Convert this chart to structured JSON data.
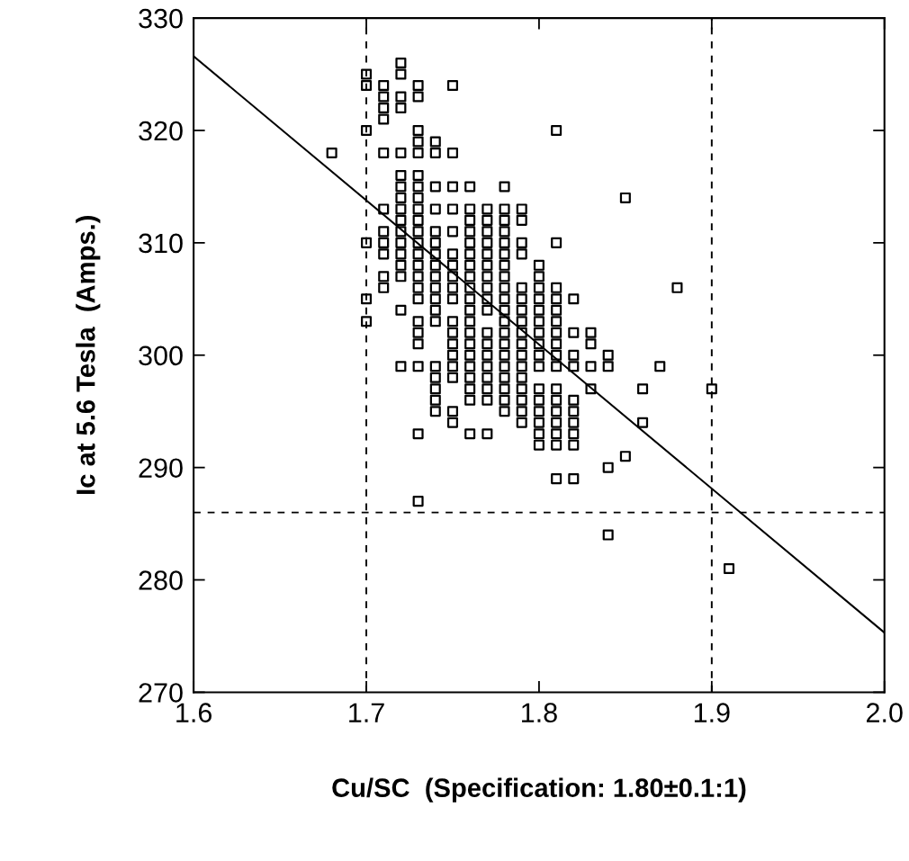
{
  "chart_data": {
    "type": "scatter",
    "xlabel": "Cu/SC  (Specification: 1.80±0.1:1)",
    "ylabel": "Ic at 5.6 Tesla  (Amps.)",
    "xlim": [
      1.6,
      2.0
    ],
    "xticks": [
      {
        "value": 1.6,
        "label": "1.6"
      },
      {
        "value": 1.7,
        "label": "1.7"
      },
      {
        "value": 1.8,
        "label": "1.8"
      },
      {
        "value": 1.9,
        "label": "1.9"
      },
      {
        "value": 2.0,
        "label": "2.0"
      }
    ],
    "ylim": [
      270,
      330
    ],
    "yticks": [
      270,
      280,
      290,
      300,
      310,
      320,
      330
    ],
    "grid": false,
    "legend": false,
    "marker": "square",
    "ref_lines": [
      {
        "axis": "x",
        "value": 1.7,
        "color": "#000000",
        "line_style": "dashed"
      },
      {
        "axis": "x",
        "value": 1.9,
        "color": "#000000",
        "line_style": "dashed"
      },
      {
        "axis": "y",
        "value": 286,
        "color": "#000000",
        "line_style": "dashed"
      }
    ],
    "series": [
      {
        "color": "#000000",
        "x": [
          1.68,
          1.7,
          1.7,
          1.7,
          1.7,
          1.7,
          1.7,
          1.71,
          1.71,
          1.71,
          1.71,
          1.71,
          1.71,
          1.71,
          1.71,
          1.71,
          1.71,
          1.71,
          1.72,
          1.72,
          1.72,
          1.72,
          1.72,
          1.72,
          1.72,
          1.72,
          1.72,
          1.72,
          1.72,
          1.72,
          1.72,
          1.72,
          1.72,
          1.72,
          1.72,
          1.73,
          1.73,
          1.73,
          1.73,
          1.73,
          1.73,
          1.73,
          1.73,
          1.73,
          1.73,
          1.73,
          1.73,
          1.73,
          1.73,
          1.73,
          1.73,
          1.73,
          1.73,
          1.73,
          1.73,
          1.73,
          1.73,
          1.73,
          1.74,
          1.74,
          1.74,
          1.74,
          1.74,
          1.74,
          1.74,
          1.74,
          1.74,
          1.74,
          1.74,
          1.74,
          1.74,
          1.74,
          1.74,
          1.74,
          1.74,
          1.74,
          1.75,
          1.75,
          1.75,
          1.75,
          1.75,
          1.75,
          1.75,
          1.75,
          1.75,
          1.75,
          1.75,
          1.75,
          1.75,
          1.75,
          1.75,
          1.75,
          1.75,
          1.75,
          1.76,
          1.76,
          1.76,
          1.76,
          1.76,
          1.76,
          1.76,
          1.76,
          1.76,
          1.76,
          1.76,
          1.76,
          1.76,
          1.76,
          1.76,
          1.76,
          1.76,
          1.76,
          1.76,
          1.76,
          1.77,
          1.77,
          1.77,
          1.77,
          1.77,
          1.77,
          1.77,
          1.77,
          1.77,
          1.77,
          1.77,
          1.77,
          1.77,
          1.77,
          1.77,
          1.77,
          1.77,
          1.77,
          1.78,
          1.78,
          1.78,
          1.78,
          1.78,
          1.78,
          1.78,
          1.78,
          1.78,
          1.78,
          1.78,
          1.78,
          1.78,
          1.78,
          1.78,
          1.78,
          1.78,
          1.78,
          1.78,
          1.78,
          1.79,
          1.79,
          1.79,
          1.79,
          1.79,
          1.79,
          1.79,
          1.79,
          1.79,
          1.79,
          1.79,
          1.79,
          1.79,
          1.79,
          1.79,
          1.79,
          1.79,
          1.8,
          1.8,
          1.8,
          1.8,
          1.8,
          1.8,
          1.8,
          1.8,
          1.8,
          1.8,
          1.8,
          1.8,
          1.8,
          1.8,
          1.8,
          1.8,
          1.81,
          1.81,
          1.81,
          1.81,
          1.81,
          1.81,
          1.81,
          1.81,
          1.81,
          1.81,
          1.81,
          1.81,
          1.81,
          1.81,
          1.81,
          1.81,
          1.81,
          1.82,
          1.82,
          1.82,
          1.82,
          1.82,
          1.82,
          1.82,
          1.82,
          1.82,
          1.82,
          1.83,
          1.83,
          1.83,
          1.83,
          1.84,
          1.84,
          1.84,
          1.84,
          1.85,
          1.85,
          1.86,
          1.86,
          1.87,
          1.88,
          1.9,
          1.91
        ],
        "values": [
          318,
          325,
          324,
          320,
          310,
          305,
          303,
          324,
          323,
          322,
          321,
          318,
          313,
          311,
          310,
          309,
          307,
          306,
          326,
          325,
          323,
          322,
          318,
          316,
          315,
          314,
          313,
          312,
          311,
          310,
          309,
          308,
          307,
          304,
          299,
          324,
          323,
          320,
          319,
          318,
          316,
          315,
          314,
          313,
          312,
          311,
          310,
          309,
          308,
          307,
          306,
          305,
          303,
          302,
          301,
          299,
          293,
          287,
          319,
          318,
          315,
          313,
          311,
          310,
          309,
          308,
          307,
          306,
          305,
          304,
          303,
          299,
          298,
          297,
          296,
          295,
          324,
          318,
          315,
          313,
          311,
          309,
          308,
          307,
          306,
          305,
          303,
          302,
          301,
          300,
          299,
          298,
          295,
          294,
          315,
          313,
          312,
          311,
          310,
          309,
          308,
          307,
          306,
          305,
          304,
          303,
          302,
          301,
          300,
          299,
          298,
          297,
          296,
          293,
          313,
          312,
          311,
          310,
          309,
          308,
          307,
          306,
          305,
          304,
          302,
          301,
          300,
          299,
          298,
          297,
          296,
          293,
          315,
          313,
          312,
          311,
          310,
          309,
          308,
          307,
          306,
          305,
          304,
          303,
          302,
          301,
          300,
          299,
          298,
          297,
          296,
          295,
          313,
          312,
          310,
          309,
          306,
          305,
          304,
          303,
          302,
          301,
          300,
          299,
          298,
          297,
          296,
          295,
          294,
          308,
          307,
          306,
          305,
          304,
          303,
          302,
          301,
          300,
          299,
          297,
          296,
          295,
          294,
          293,
          292,
          320,
          310,
          306,
          305,
          304,
          303,
          302,
          301,
          300,
          299,
          297,
          296,
          295,
          294,
          293,
          292,
          289,
          305,
          302,
          300,
          299,
          296,
          295,
          294,
          293,
          292,
          289,
          302,
          301,
          299,
          297,
          300,
          299,
          290,
          284,
          314,
          291,
          297,
          294,
          299,
          306,
          297,
          281
        ]
      },
      {
        "type": "line",
        "color": "#000000",
        "marker": "none",
        "line_style": "solid",
        "x": [
          1.6,
          2.0
        ],
        "values": [
          326.6,
          275.3
        ]
      }
    ]
  }
}
